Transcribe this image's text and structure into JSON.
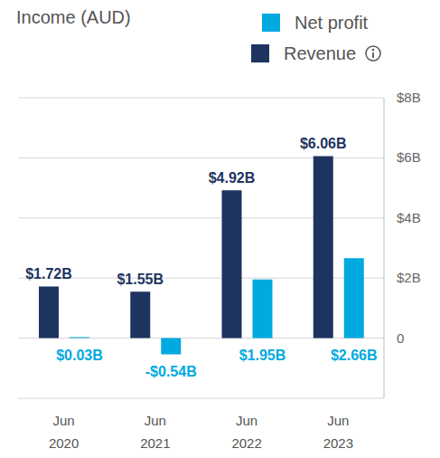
{
  "chart_data": {
    "type": "bar",
    "title": "Income (AUD)",
    "categories": [
      "Jun 2020",
      "Jun 2021",
      "Jun 2022",
      "Jun 2023"
    ],
    "series": [
      {
        "name": "Revenue",
        "color": "#1d3461",
        "values": [
          1.72,
          1.55,
          4.92,
          6.06
        ],
        "value_labels": [
          "$1.72B",
          "$1.55B",
          "$4.92B",
          "$6.06B"
        ]
      },
      {
        "name": "Net profit",
        "color": "#00a9e0",
        "values": [
          0.03,
          -0.54,
          1.95,
          2.66
        ],
        "value_labels": [
          "$0.03B",
          "-$0.54B",
          "$1.95B",
          "$2.66B"
        ]
      }
    ],
    "ylim": [
      -2,
      8
    ],
    "yticks": [
      0,
      {
        "value": 2,
        "label": "$2B"
      },
      {
        "value": 4,
        "label": "$4B"
      },
      {
        "value": 6,
        "label": "$6B"
      },
      {
        "value": 8,
        "label": "$8B"
      }
    ],
    "grid": true,
    "data_labels": true,
    "legend": "top right"
  }
}
